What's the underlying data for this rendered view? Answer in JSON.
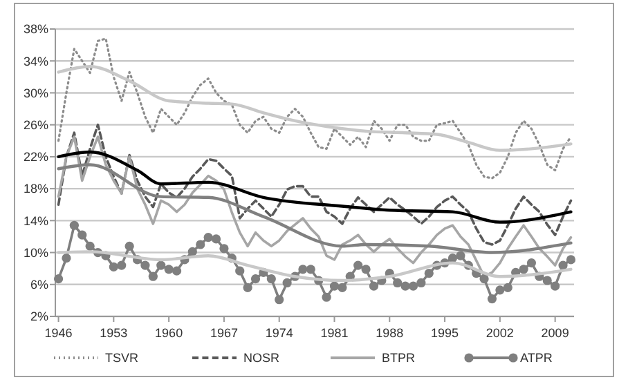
{
  "chart_data": {
    "type": "line",
    "legend": "bottom",
    "grid": "y",
    "x": [
      1946,
      1947,
      1948,
      1949,
      1950,
      1951,
      1952,
      1953,
      1954,
      1955,
      1956,
      1957,
      1958,
      1959,
      1960,
      1961,
      1962,
      1963,
      1964,
      1965,
      1966,
      1967,
      1968,
      1969,
      1970,
      1971,
      1972,
      1973,
      1974,
      1975,
      1976,
      1977,
      1978,
      1979,
      1980,
      1981,
      1982,
      1983,
      1984,
      1985,
      1986,
      1987,
      1988,
      1989,
      1990,
      1991,
      1992,
      1993,
      1994,
      1995,
      1996,
      1997,
      1998,
      1999,
      2000,
      2001,
      2002,
      2003,
      2004,
      2005,
      2006,
      2007,
      2008,
      2009,
      2010,
      2011
    ],
    "xlim": [
      1945.6,
      2011.4
    ],
    "xticks": [
      1946,
      1953,
      1960,
      1967,
      1974,
      1981,
      1988,
      1995,
      2002,
      2009
    ],
    "ylim": [
      2,
      38
    ],
    "yticks": [
      {
        "value": 2,
        "label": "2%"
      },
      {
        "value": 6,
        "label": "6%"
      },
      {
        "value": 10,
        "label": "10%"
      },
      {
        "value": 14,
        "label": "14%"
      },
      {
        "value": 18,
        "label": "18%"
      },
      {
        "value": 22,
        "label": "22%"
      },
      {
        "value": 26,
        "label": "26%"
      },
      {
        "value": 30,
        "label": "30%"
      },
      {
        "value": 34,
        "label": "34%"
      },
      {
        "value": 38,
        "label": "38%"
      }
    ],
    "series": [
      {
        "name": "TSVR",
        "color": "#8c8c8c",
        "line_style": "dotted",
        "values": [
          24,
          30,
          35.5,
          34,
          32.5,
          36.5,
          36.8,
          32,
          29,
          32.6,
          30,
          27,
          25,
          28,
          27,
          26,
          27.5,
          29.5,
          31,
          31.8,
          30,
          29,
          28.5,
          26,
          25,
          26.5,
          27,
          25.5,
          25,
          27,
          28,
          27,
          25,
          23.2,
          23,
          25.5,
          24.5,
          23.5,
          24.5,
          23.2,
          26.5,
          25.5,
          24,
          26,
          26,
          24.5,
          24,
          24,
          26,
          26.2,
          26.5,
          25,
          23.5,
          21,
          19.5,
          19.3,
          20,
          22,
          25,
          26.5,
          25.5,
          23.5,
          21,
          20.3,
          23,
          24.5
        ]
      },
      {
        "name": "NOSR",
        "color": "#595959",
        "line_style": "dashed",
        "values": [
          16,
          22,
          25,
          19.6,
          23,
          26,
          22,
          19.5,
          17.4,
          22.2,
          19,
          17,
          15.7,
          18.6,
          17.5,
          16.9,
          18,
          19.5,
          20.5,
          21.7,
          21.5,
          20.5,
          19.6,
          14.3,
          15.5,
          16.5,
          15.5,
          14.5,
          16,
          17.9,
          18.3,
          18.3,
          17,
          17,
          15.1,
          14.5,
          13.6,
          15.5,
          16.9,
          16,
          15.1,
          16,
          16.9,
          16,
          15.3,
          14.5,
          13.6,
          14.5,
          15.7,
          16.5,
          17,
          16,
          15.1,
          13,
          11.3,
          11,
          11.5,
          13.4,
          15.5,
          17,
          16,
          15.1,
          13.5,
          12.2,
          14.5,
          16.5
        ]
      },
      {
        "name": "BTPR",
        "color": "#a6a6a6",
        "line_style": "solid",
        "values": [
          17,
          22,
          24.5,
          19,
          22,
          24.5,
          21,
          19,
          17.4,
          22,
          18,
          16,
          13.6,
          16.5,
          16,
          15.1,
          16,
          17.5,
          18.5,
          19.6,
          19,
          17.9,
          15,
          12.5,
          10.8,
          12.5,
          11.5,
          10.8,
          11.5,
          12.7,
          13.5,
          14.3,
          13,
          12,
          9.6,
          9.1,
          11,
          11.5,
          12.2,
          11,
          10.1,
          11,
          11.7,
          10.5,
          9.5,
          8.7,
          10,
          11,
          12.2,
          13,
          13.4,
          12,
          11,
          9,
          7,
          7.5,
          8.7,
          10.5,
          12,
          13.4,
          12,
          10.5,
          9.5,
          8.4,
          10.5,
          11.9
        ]
      },
      {
        "name": "ATPR",
        "color": "#7f7f7f",
        "line_style": "solid",
        "marker": "circle",
        "values": [
          6.7,
          9.3,
          13.4,
          12.2,
          10.8,
          10,
          9.6,
          8.2,
          8.4,
          10.8,
          9.1,
          8.4,
          7,
          8.4,
          7.9,
          7.7,
          9.1,
          10.1,
          11,
          11.9,
          11.7,
          10.5,
          9.3,
          7.7,
          5.6,
          6.7,
          7.5,
          6.7,
          4.1,
          6.2,
          7,
          7.9,
          7.9,
          6.5,
          4.4,
          5.8,
          5.6,
          7,
          8.4,
          7.9,
          5.8,
          6.5,
          7.4,
          6.2,
          5.8,
          5.8,
          6.2,
          7.4,
          8.4,
          8.7,
          9.3,
          9.6,
          8.4,
          7.4,
          6.7,
          4.2,
          5.3,
          5.6,
          7.5,
          7.9,
          8.7,
          7,
          6.5,
          5.8,
          8.4,
          9.1
        ]
      },
      {
        "type": "line",
        "color": "#c8c8c8",
        "line_style": "solid",
        "x": [
          1946,
          1950,
          1955,
          1960,
          1965,
          1968,
          1972,
          1976,
          1980,
          1985,
          1990,
          1994,
          1998,
          2002,
          2006,
          2011
        ],
        "values": [
          32.6,
          33.3,
          31.5,
          29,
          28.7,
          28.6,
          27.5,
          26.5,
          25.8,
          25.2,
          25,
          24.8,
          23.8,
          22.8,
          23,
          23.6
        ]
      },
      {
        "type": "line",
        "color": "#000000",
        "line_style": "solid",
        "x": [
          1946,
          1950,
          1956,
          1959,
          1965,
          1972,
          1982,
          1988,
          1996,
          2002,
          2011
        ],
        "values": [
          22,
          22.6,
          20.3,
          18.6,
          18.8,
          16.9,
          15.8,
          15.3,
          15.1,
          13.8,
          15.1
        ]
      },
      {
        "type": "line",
        "color": "#808080",
        "line_style": "solid",
        "x": [
          1946,
          1950,
          1959,
          1965,
          1972,
          1982,
          1985,
          1993,
          2001,
          2011
        ],
        "values": [
          20.5,
          21,
          17,
          16.9,
          14.5,
          10.8,
          11,
          10.8,
          10,
          11.2
        ]
      },
      {
        "type": "line",
        "color": "#c8c8c8",
        "line_style": "solid",
        "x": [
          1946,
          1950,
          1959,
          1965,
          1970,
          1976,
          1982,
          1988,
          1996,
          2002,
          2011
        ],
        "values": [
          10,
          10.1,
          9.1,
          9.6,
          8.4,
          7,
          6.5,
          7,
          8.7,
          7,
          7.9
        ]
      }
    ]
  }
}
